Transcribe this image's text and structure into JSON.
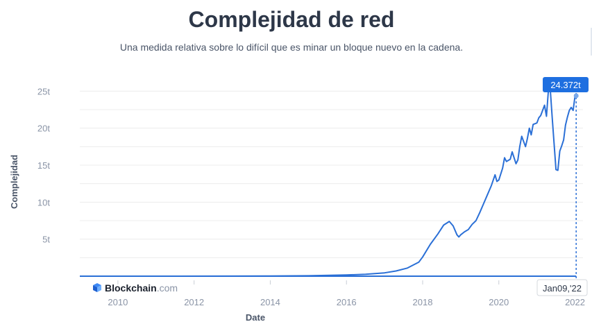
{
  "header": {
    "title": "Complejidad de red",
    "subtitle": "Una medida relativa sobre lo difícil que es minar un bloque nuevo en la cadena."
  },
  "brand": {
    "name": "Blockchain",
    "suffix": ".com",
    "icon": "blockchain-cube-icon"
  },
  "colors": {
    "line": "#2a6fd6",
    "tooltip_bg": "#1e6fe0",
    "grid": "#ececec",
    "tick": "#8a94a6"
  },
  "tooltip": {
    "value": "24.372t",
    "date": "Jan09,'22"
  },
  "chart_data": {
    "type": "line",
    "title": "Complejidad de red",
    "xlabel": "Date",
    "ylabel": "Complejidad",
    "x_ticks": [
      "2010",
      "2012",
      "2014",
      "2016",
      "2018",
      "2020",
      "2022"
    ],
    "y_ticks": [
      "5t",
      "10t",
      "15t",
      "20t",
      "25t"
    ],
    "xlim": [
      2009.0,
      2022.3
    ],
    "ylim": [
      0,
      27
    ],
    "grid": true,
    "series": [
      {
        "x": [
          2009.0,
          2011.0,
          2013.0,
          2014.0,
          2015.0,
          2016.0,
          2016.5,
          2017.0,
          2017.3,
          2017.6,
          2017.9,
          2018.0,
          2018.2,
          2018.4,
          2018.55,
          2018.7,
          2018.8,
          2018.9,
          2018.95,
          2019.0,
          2019.1,
          2019.2,
          2019.3,
          2019.4,
          2019.5,
          2019.6,
          2019.7,
          2019.8,
          2019.9,
          2019.95,
          2020.0,
          2020.1,
          2020.15,
          2020.2,
          2020.3,
          2020.35,
          2020.45,
          2020.5,
          2020.55,
          2020.6,
          2020.7,
          2020.75,
          2020.8,
          2020.85,
          2020.9,
          2021.0,
          2021.05,
          2021.1,
          2021.2,
          2021.25,
          2021.3,
          2021.35,
          2021.4,
          2021.45,
          2021.5,
          2021.55,
          2021.6,
          2021.65,
          2021.7,
          2021.75,
          2021.8,
          2021.85,
          2021.9,
          2021.95,
          2022.0,
          2022.03
        ],
        "y": [
          0.0,
          0.0,
          0.005,
          0.03,
          0.06,
          0.16,
          0.26,
          0.45,
          0.7,
          1.1,
          1.9,
          2.6,
          4.3,
          5.7,
          6.9,
          7.4,
          6.8,
          5.6,
          5.3,
          5.6,
          6.0,
          6.3,
          7.0,
          7.5,
          8.6,
          9.8,
          11.0,
          12.2,
          13.7,
          12.8,
          13.0,
          14.6,
          16.0,
          15.5,
          15.8,
          16.8,
          15.2,
          15.7,
          17.5,
          18.9,
          17.5,
          18.6,
          20.0,
          19.1,
          20.5,
          20.7,
          21.4,
          21.7,
          23.1,
          21.6,
          25.0,
          25.2,
          21.5,
          18.0,
          14.4,
          14.3,
          16.9,
          17.6,
          18.4,
          20.4,
          21.5,
          22.4,
          22.8,
          22.4,
          24.3,
          24.372
        ]
      }
    ]
  }
}
